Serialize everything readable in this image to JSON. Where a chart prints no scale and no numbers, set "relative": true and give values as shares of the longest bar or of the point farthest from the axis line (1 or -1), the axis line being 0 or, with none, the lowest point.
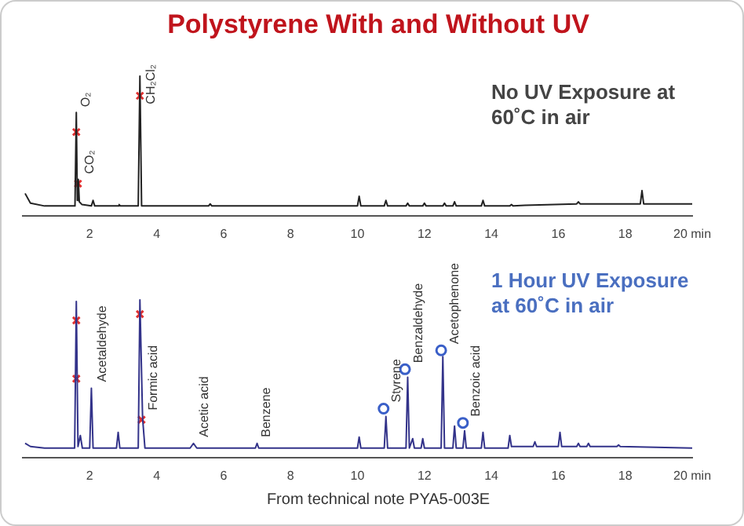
{
  "chart_data": [
    {
      "type": "line",
      "title": "Polystyrene With and Without UV",
      "relative": true,
      "xlim": [
        0,
        20
      ],
      "xticks": [
        2,
        4,
        6,
        8,
        10,
        12,
        14,
        16,
        18,
        {
          "value": 20,
          "label": "20 min"
        }
      ],
      "series": [
        {
          "color": "#222222",
          "marker": "none",
          "x": [
            0.07,
            0.23,
            0.65,
            1.56,
            1.6,
            1.63,
            1.66,
            1.69,
            1.77,
            2.05,
            2.1,
            2.15,
            2.85,
            2.88,
            2.92,
            3.45,
            3.5,
            3.55,
            5.55,
            5.6,
            5.65,
            10.0,
            10.05,
            10.1,
            10.8,
            10.85,
            10.9,
            11.45,
            11.5,
            11.55,
            11.95,
            12.0,
            12.05,
            12.55,
            12.6,
            12.65,
            12.85,
            12.9,
            12.95,
            13.7,
            13.75,
            13.8,
            14.55,
            14.6,
            14.65,
            15.0,
            16.55,
            16.6,
            16.65,
            18.45,
            18.5,
            18.55,
            20.0
          ],
          "values": [
            0.16,
            0.09,
            0.07,
            0.07,
            0.74,
            0.11,
            0.26,
            0.1,
            0.08,
            0.07,
            0.11,
            0.07,
            0.07,
            0.08,
            0.07,
            0.07,
            1.0,
            0.07,
            0.07,
            0.085,
            0.07,
            0.07,
            0.14,
            0.07,
            0.07,
            0.11,
            0.07,
            0.07,
            0.09,
            0.07,
            0.07,
            0.09,
            0.07,
            0.07,
            0.09,
            0.07,
            0.07,
            0.1,
            0.07,
            0.07,
            0.11,
            0.07,
            0.07,
            0.08,
            0.07,
            0.075,
            0.085,
            0.1,
            0.085,
            0.085,
            0.18,
            0.085,
            0.085
          ]
        },
        {
          "type": "scatter",
          "color": "#e03030",
          "marker": "cross",
          "x": [
            1.6,
            1.65,
            3.5
          ],
          "values": [
            0.6,
            0.23,
            0.86
          ]
        }
      ],
      "annotations": [
        "No UV Exposure at 60˚C in air",
        {
          "text": "O₂",
          "x": 1.6,
          "y": 0.78
        },
        {
          "text": "CO₂",
          "x": 1.72,
          "y": 0.3
        },
        {
          "text": "CH₂Cl₂",
          "x": 3.55,
          "y": 0.8
        }
      ]
    },
    {
      "type": "line",
      "relative": true,
      "xlim": [
        0,
        20
      ],
      "xticks": [
        2,
        4,
        6,
        8,
        10,
        12,
        14,
        16,
        18,
        {
          "value": 20,
          "label": "20 min"
        }
      ],
      "series": [
        {
          "color": "#33338a",
          "marker": "none",
          "x": [
            0.07,
            0.23,
            0.65,
            1.55,
            1.6,
            1.65,
            1.72,
            1.78,
            2.0,
            2.05,
            2.1,
            2.8,
            2.85,
            2.9,
            3.45,
            3.5,
            3.58,
            3.65,
            5.0,
            5.1,
            5.2,
            6.95,
            7.0,
            7.05,
            10.0,
            10.05,
            10.1,
            10.8,
            10.85,
            10.9,
            11.45,
            11.5,
            11.55,
            11.65,
            11.7,
            11.9,
            11.95,
            12.0,
            12.5,
            12.55,
            12.6,
            12.85,
            12.9,
            12.95,
            13.15,
            13.2,
            13.25,
            13.7,
            13.75,
            13.8,
            14.5,
            14.55,
            14.6,
            15.25,
            15.3,
            15.35,
            16.0,
            16.05,
            16.1,
            16.55,
            16.6,
            16.65,
            16.85,
            16.9,
            16.95,
            17.75,
            17.8,
            17.85,
            20.0
          ],
          "values": [
            0.09,
            0.07,
            0.06,
            0.06,
            0.99,
            0.07,
            0.14,
            0.06,
            0.06,
            0.44,
            0.06,
            0.06,
            0.16,
            0.06,
            0.06,
            1.0,
            0.25,
            0.06,
            0.06,
            0.09,
            0.06,
            0.06,
            0.09,
            0.06,
            0.06,
            0.13,
            0.06,
            0.06,
            0.26,
            0.06,
            0.06,
            0.51,
            0.06,
            0.12,
            0.06,
            0.06,
            0.12,
            0.06,
            0.06,
            0.64,
            0.06,
            0.06,
            0.2,
            0.06,
            0.06,
            0.17,
            0.06,
            0.06,
            0.16,
            0.06,
            0.06,
            0.14,
            0.07,
            0.07,
            0.1,
            0.07,
            0.07,
            0.16,
            0.07,
            0.07,
            0.09,
            0.07,
            0.07,
            0.09,
            0.07,
            0.07,
            0.08,
            0.07,
            0.06
          ]
        },
        {
          "type": "scatter",
          "color": "#e03030",
          "marker": "cross",
          "x": [
            1.6,
            1.6,
            3.5,
            3.55
          ],
          "values": [
            0.87,
            0.5,
            0.91,
            0.24
          ]
        },
        {
          "type": "scatter",
          "color": "#3a5fc8",
          "marker": "circle",
          "x": [
            10.78,
            11.42,
            12.5,
            13.15
          ],
          "values": [
            0.31,
            0.56,
            0.68,
            0.22
          ]
        }
      ],
      "annotations": [
        "1 Hour UV Exposure at 60˚C in air",
        "From technical note PYA5-003E",
        {
          "text": "Acetaldehyde",
          "x": 2.1,
          "y": 0.48
        },
        {
          "text": "Formic acid",
          "x": 3.62,
          "y": 0.3
        },
        {
          "text": "Acetic acid",
          "x": 5.15,
          "y": 0.13
        },
        {
          "text": "Benzene",
          "x": 7.0,
          "y": 0.13
        },
        {
          "text": "Styrene",
          "x": 10.9,
          "y": 0.35
        },
        {
          "text": "Benzaldehyde",
          "x": 11.55,
          "y": 0.6
        },
        {
          "text": "Acetophenone",
          "x": 12.62,
          "y": 0.72
        },
        {
          "text": "Benzoic acid",
          "x": 13.27,
          "y": 0.26
        }
      ]
    }
  ]
}
